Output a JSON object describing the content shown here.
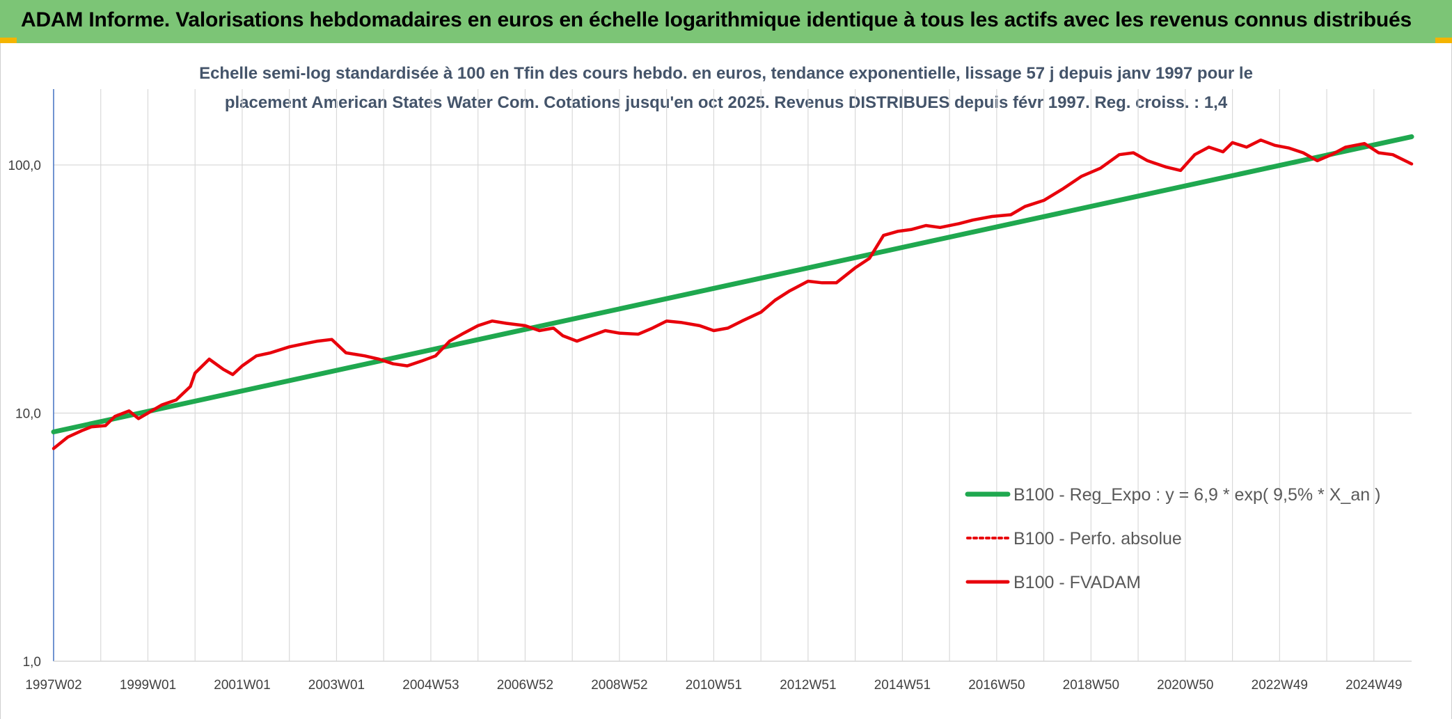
{
  "banner": {
    "title": "ADAM Informe. Valorisations hebdomadaires en euros en échelle logarithmique identique à tous les actifs avec les revenus connus distribués",
    "color": "#7cc576"
  },
  "chart_data": {
    "type": "line",
    "title": "",
    "subtitle_lines": [
      "Echelle semi-log standardisée à 100 en Tfin des cours hebdo. en euros, tendance exponentielle, lissage 57 j depuis janv 1997 pour le",
      "placement American States Water Com. Cotations jusqu'en oct 2025. Revenus DISTRIBUES depuis févr 1997. Reg. croiss. : 1,4"
    ],
    "xlabel": "",
    "ylabel": "",
    "y_scale": "log",
    "ylim": [
      1,
      200
    ],
    "y_ticks": [
      {
        "value": 1,
        "label": "1,0"
      },
      {
        "value": 10,
        "label": "10,0"
      },
      {
        "value": 100,
        "label": "100,0"
      }
    ],
    "xlim": [
      1997.0,
      2025.8
    ],
    "x_ticks": [
      {
        "x": 1997.0,
        "label": "1997W02"
      },
      {
        "x": 1999.0,
        "label": "1999W01"
      },
      {
        "x": 2001.0,
        "label": "2001W01"
      },
      {
        "x": 2003.0,
        "label": "2003W01"
      },
      {
        "x": 2005.0,
        "label": "2004W53"
      },
      {
        "x": 2007.0,
        "label": "2006W52"
      },
      {
        "x": 2009.0,
        "label": "2008W52"
      },
      {
        "x": 2011.0,
        "label": "2010W51"
      },
      {
        "x": 2013.0,
        "label": "2012W51"
      },
      {
        "x": 2015.0,
        "label": "2014W51"
      },
      {
        "x": 2017.0,
        "label": "2016W50"
      },
      {
        "x": 2019.0,
        "label": "2018W50"
      },
      {
        "x": 2021.0,
        "label": "2020W50"
      },
      {
        "x": 2023.0,
        "label": "2022W49"
      },
      {
        "x": 2025.0,
        "label": "2024W49"
      }
    ],
    "grid": true,
    "legend_position": "bottom-right",
    "series": [
      {
        "name": "B100 - Reg_Expo : y = 6,9 * exp( 9,5% *  X_an )",
        "color": "#1fa84f",
        "style": "solid",
        "x": [
          1997.0,
          2025.8
        ],
        "y": [
          8.4,
          130
        ]
      },
      {
        "name": "B100 - Perfo. absolue",
        "color": "#e8000b",
        "style": "dotted",
        "x": [],
        "y": []
      },
      {
        "name": "B100 - FVADAM",
        "color": "#e8000b",
        "style": "solid",
        "x": [
          1997.0,
          1997.3,
          1997.6,
          1997.8,
          1998.1,
          1998.3,
          1998.6,
          1998.8,
          1999.0,
          1999.3,
          1999.6,
          1999.9,
          2000.0,
          2000.3,
          2000.6,
          2000.8,
          2001.0,
          2001.3,
          2001.6,
          2002.0,
          2002.3,
          2002.6,
          2002.9,
          2003.2,
          2003.6,
          2003.9,
          2004.2,
          2004.5,
          2004.8,
          2005.1,
          2005.4,
          2005.7,
          2006.0,
          2006.3,
          2006.6,
          2007.0,
          2007.3,
          2007.6,
          2007.8,
          2008.1,
          2008.4,
          2008.7,
          2009.0,
          2009.4,
          2009.7,
          2010.0,
          2010.3,
          2010.7,
          2011.0,
          2011.3,
          2011.6,
          2012.0,
          2012.3,
          2012.6,
          2013.0,
          2013.3,
          2013.6,
          2014.0,
          2014.3,
          2014.6,
          2014.9,
          2015.2,
          2015.5,
          2015.8,
          2016.2,
          2016.5,
          2016.9,
          2017.3,
          2017.6,
          2018.0,
          2018.4,
          2018.8,
          2019.2,
          2019.6,
          2019.9,
          2020.2,
          2020.6,
          2020.9,
          2021.2,
          2021.5,
          2021.8,
          2022.0,
          2022.3,
          2022.6,
          2022.9,
          2023.2,
          2023.5,
          2023.8,
          2024.1,
          2024.4,
          2024.8,
          2025.1,
          2025.4,
          2025.8
        ],
        "y": [
          7.2,
          8.0,
          8.5,
          8.8,
          8.9,
          9.7,
          10.2,
          9.5,
          10.0,
          10.8,
          11.3,
          12.8,
          14.5,
          16.5,
          15.0,
          14.3,
          15.5,
          17.0,
          17.5,
          18.5,
          19.0,
          19.5,
          19.8,
          17.5,
          17.0,
          16.5,
          15.8,
          15.5,
          16.2,
          17.0,
          19.5,
          21.0,
          22.5,
          23.5,
          23.0,
          22.5,
          21.5,
          22.0,
          20.5,
          19.5,
          20.5,
          21.5,
          21.0,
          20.8,
          22.0,
          23.5,
          23.2,
          22.5,
          21.5,
          22.0,
          23.5,
          25.5,
          28.5,
          31.0,
          34.0,
          33.5,
          33.5,
          38.5,
          42.0,
          52.0,
          54.0,
          55.0,
          57.0,
          56.0,
          58.0,
          60.0,
          62.0,
          63.0,
          68.0,
          72.0,
          80.0,
          90.0,
          97.0,
          110.0,
          112.0,
          104.0,
          98.0,
          95.0,
          110.0,
          118.0,
          113.0,
          123.0,
          118.0,
          126.0,
          120.0,
          117.0,
          112.0,
          104.0,
          110.0,
          118.0,
          122.0,
          112.0,
          110.0,
          101.0
        ]
      }
    ]
  }
}
